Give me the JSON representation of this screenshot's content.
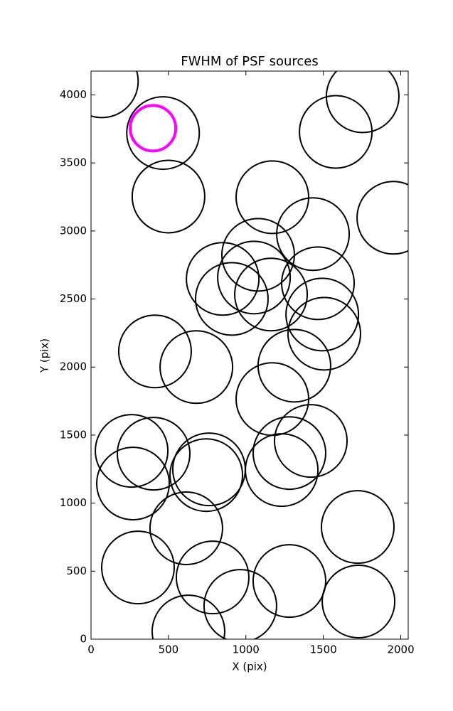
{
  "chart_data": {
    "type": "scatter",
    "title": "FWHM of PSF sources",
    "xlabel": "X (pix)",
    "ylabel": "Y (pix)",
    "xlim": [
      0,
      2048
    ],
    "ylim": [
      0,
      4175
    ],
    "xticks": [
      0,
      500,
      1000,
      1500,
      2000
    ],
    "yticks": [
      0,
      500,
      1000,
      1500,
      2000,
      2500,
      3000,
      3500,
      4000
    ],
    "series": [
      {
        "color": "#000000",
        "x": [
          70,
          465,
          500,
          1754,
          1580,
          1171,
          1952,
          1433,
          1079,
          850,
          1052,
          909,
          1162,
          1465,
          1493,
          1506,
          413,
          680,
          1313,
          1171,
          262,
          404,
          762,
          744,
          1419,
          1281,
          1231,
          271,
          1722,
          615,
          303,
          785,
          1281,
          1727,
          964,
          629
        ],
        "values": [
          4100,
          3720,
          3253,
          3990,
          3728,
          3248,
          3097,
          2977,
          2825,
          2648,
          2658,
          2501,
          2533,
          2616,
          2386,
          2245,
          2115,
          2000,
          2010,
          1765,
          1384,
          1363,
          1248,
          1206,
          1457,
          1368,
          1243,
          1144,
          825,
          815,
          527,
          454,
          428,
          277,
          245,
          57
        ]
      },
      {
        "color": "#ff00ff",
        "x": [
          400
        ],
        "values": [
          3755
        ]
      }
    ]
  }
}
